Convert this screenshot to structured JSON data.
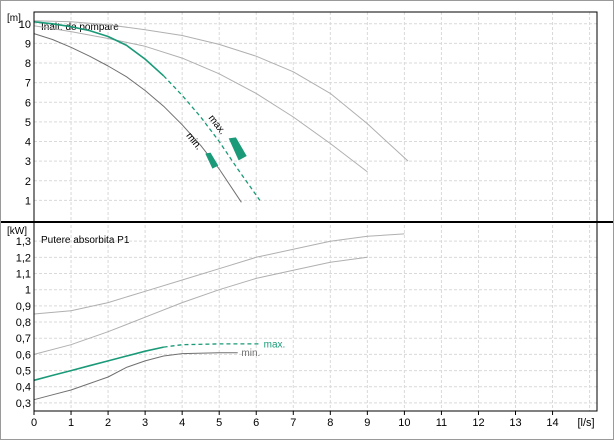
{
  "chart_data": [
    {
      "type": "line",
      "title": "Inalt. de pompare",
      "ylabel": "[m]",
      "xlabel": "[l/s]",
      "xlim": [
        0,
        15.2
      ],
      "ylim": [
        0,
        10.6
      ],
      "x_ticks": [
        0,
        1,
        2,
        3,
        4,
        5,
        6,
        7,
        8,
        9,
        10,
        11,
        12,
        13,
        14
      ],
      "y_ticks": [
        1,
        2,
        3,
        4,
        5,
        6,
        7,
        8,
        9,
        10
      ],
      "grid": true,
      "series": [
        {
          "color": "#b0b0b0",
          "x": [
            0,
            1,
            2,
            3,
            4,
            5,
            6,
            7,
            8,
            9,
            10.1
          ],
          "y": [
            10.15,
            10.1,
            9.95,
            9.7,
            9.4,
            8.95,
            8.35,
            7.55,
            6.45,
            4.9,
            3.0
          ]
        },
        {
          "color": "#b0b0b0",
          "x": [
            0,
            1,
            2,
            3,
            4,
            5,
            6,
            7,
            8,
            9
          ],
          "y": [
            9.9,
            9.6,
            9.25,
            8.85,
            8.25,
            7.45,
            6.45,
            5.25,
            3.9,
            2.45
          ]
        },
        {
          "name": "max.",
          "color": "#1a9a78",
          "dashed_from": 3.8,
          "x": [
            0,
            0.5,
            1,
            1.5,
            2,
            2.5,
            3,
            3.5,
            4,
            4.5,
            5,
            5.5,
            6.1
          ],
          "y": [
            10.1,
            10.0,
            9.85,
            9.65,
            9.35,
            8.9,
            8.2,
            7.35,
            6.35,
            5.25,
            4.0,
            2.6,
            1.0
          ]
        },
        {
          "name": "min.",
          "color": "#707070",
          "x": [
            0,
            0.5,
            1,
            1.5,
            2,
            2.5,
            3,
            3.5,
            4,
            4.5,
            5,
            5.6
          ],
          "y": [
            9.5,
            9.2,
            8.8,
            8.35,
            7.85,
            7.3,
            6.6,
            5.8,
            4.85,
            3.8,
            2.6,
            0.9
          ]
        }
      ],
      "annotations": [
        "max.",
        "min."
      ]
    },
    {
      "type": "line",
      "title": "Putere absorbita P1",
      "ylabel": "[kW]",
      "xlabel": "[l/s]",
      "xlim": [
        0,
        15.2
      ],
      "ylim": [
        0.25,
        1.4
      ],
      "y_ticks": [
        0.3,
        0.4,
        0.5,
        0.6,
        0.7,
        0.8,
        0.9,
        1.0,
        1.1,
        1.2,
        1.3
      ],
      "y_tick_labels": [
        "0,3",
        "0,4",
        "0,5",
        "0,6",
        "0,7",
        "0,8",
        "0,9",
        "1",
        "1,1",
        "1,2",
        "1,3"
      ],
      "grid": true,
      "series": [
        {
          "color": "#b0b0b0",
          "x": [
            0,
            1,
            2,
            3,
            4,
            5,
            6,
            7,
            8,
            9,
            10
          ],
          "y": [
            0.85,
            0.87,
            0.92,
            0.99,
            1.06,
            1.13,
            1.2,
            1.25,
            1.3,
            1.33,
            1.345
          ]
        },
        {
          "color": "#b0b0b0",
          "x": [
            0,
            1,
            2,
            3,
            4,
            5,
            6,
            7,
            8,
            9
          ],
          "y": [
            0.6,
            0.66,
            0.74,
            0.83,
            0.92,
            1.0,
            1.07,
            1.12,
            1.17,
            1.2
          ]
        },
        {
          "name": "max.",
          "color": "#1a9a78",
          "dashed_from": 4.0,
          "x": [
            0,
            0.5,
            1,
            1.5,
            2,
            2.5,
            3,
            3.5,
            4,
            5,
            6.1
          ],
          "y": [
            0.44,
            0.47,
            0.5,
            0.53,
            0.56,
            0.59,
            0.62,
            0.645,
            0.66,
            0.665,
            0.665
          ]
        },
        {
          "name": "min.",
          "color": "#707070",
          "x": [
            0,
            0.5,
            1,
            1.5,
            2,
            2.5,
            3,
            3.5,
            4,
            5,
            5.5
          ],
          "y": [
            0.32,
            0.35,
            0.38,
            0.42,
            0.46,
            0.52,
            0.56,
            0.59,
            0.605,
            0.61,
            0.61
          ]
        }
      ],
      "annotations": [
        "max.",
        "min."
      ]
    }
  ]
}
